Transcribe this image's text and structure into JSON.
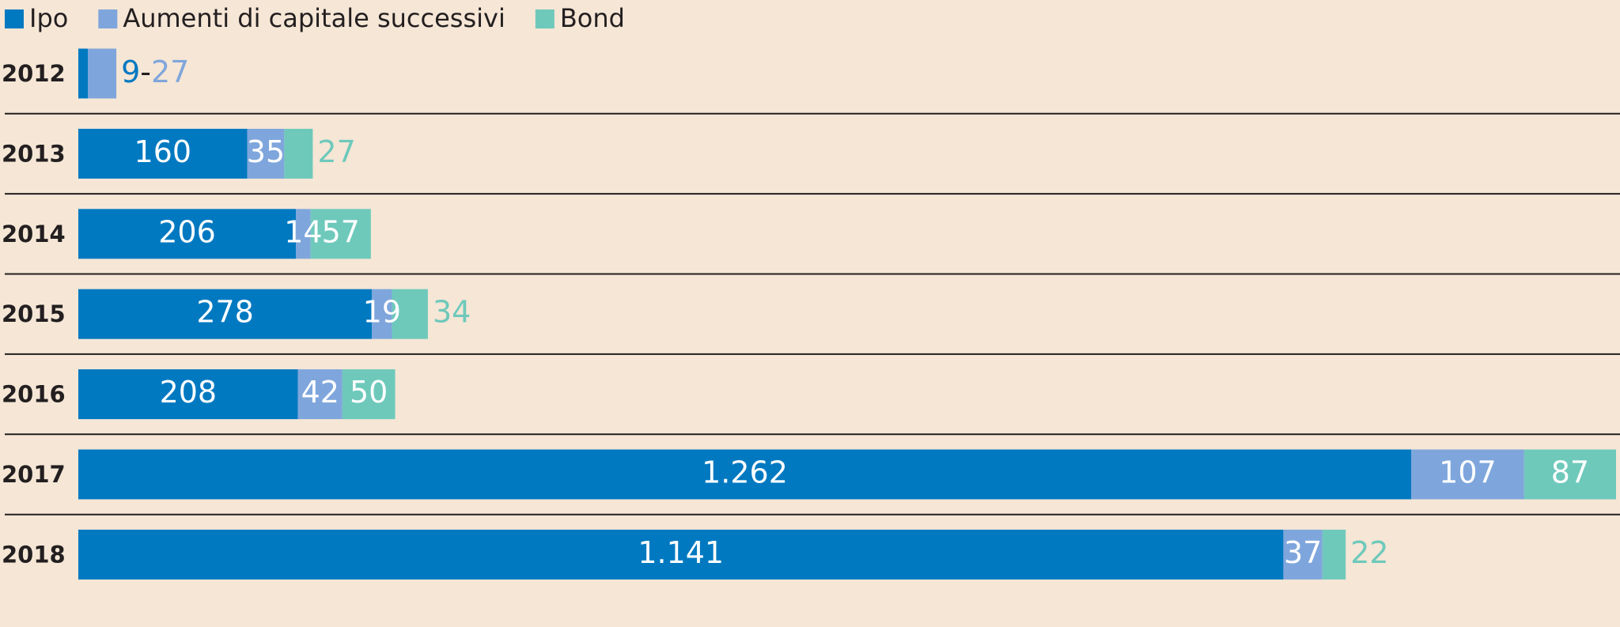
{
  "chart_data": {
    "type": "stacked-bar-horizontal",
    "categories": [
      "2012",
      "2013",
      "2014",
      "2015",
      "2016",
      "2017",
      "2018"
    ],
    "series": [
      {
        "name": "Ipo",
        "color": "#0079c1",
        "values": [
          9,
          160,
          206,
          278,
          208,
          1262,
          1141
        ],
        "value_labels": [
          "9",
          "160",
          "206",
          "278",
          "208",
          "1.262",
          "1.141"
        ]
      },
      {
        "name": "Aumenti di capitale successivi",
        "color": "#7fa6dc",
        "values": [
          27,
          35,
          14,
          19,
          42,
          107,
          37
        ]
      },
      {
        "name": "Bond",
        "color": "#6ec9bb",
        "values": [
          null,
          27,
          57,
          34,
          50,
          87,
          22
        ]
      }
    ],
    "label_separator": "-",
    "legend": "top-left"
  }
}
